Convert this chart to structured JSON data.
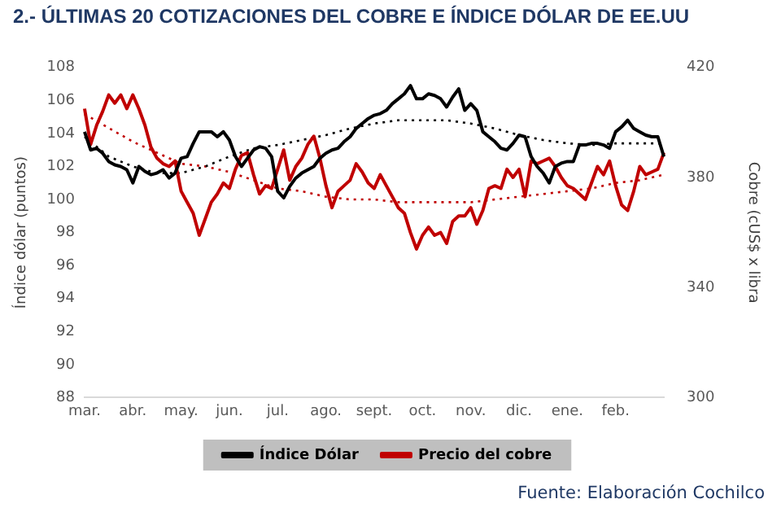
{
  "chart_data": {
    "type": "line",
    "title": "2.- ÚLTIMAS 20 COTIZACIONES DEL COBRE E ÍNDICE DÓLAR DE EE.UU",
    "ylabel": "Índice dólar (puntos)",
    "y2label": "Cobre (cUS$ x libra",
    "annotations": [
      "Fuente: Elaboración Cochilco"
    ],
    "categories": [
      "mar.",
      null,
      null,
      null,
      null,
      null,
      null,
      null,
      "abr.",
      null,
      null,
      null,
      null,
      null,
      null,
      null,
      "may.",
      null,
      null,
      null,
      null,
      null,
      null,
      null,
      "jun.",
      null,
      null,
      null,
      null,
      null,
      null,
      null,
      "jul.",
      null,
      null,
      null,
      null,
      null,
      null,
      null,
      "ago.",
      null,
      null,
      null,
      null,
      null,
      null,
      null,
      "sept.",
      null,
      null,
      null,
      null,
      null,
      null,
      null,
      "oct.",
      null,
      null,
      null,
      null,
      null,
      null,
      null,
      "nov.",
      null,
      null,
      null,
      null,
      null,
      null,
      null,
      "dic.",
      null,
      null,
      null,
      null,
      null,
      null,
      null,
      "ene.",
      null,
      null,
      null,
      null,
      null,
      null,
      null,
      "feb.",
      null,
      null,
      null,
      null,
      null,
      null,
      null,
      null
    ],
    "ylim": [
      88,
      108
    ],
    "yticks": [
      88,
      90,
      92,
      94,
      96,
      98,
      100,
      102,
      104,
      106,
      108
    ],
    "y2lim": [
      300,
      420
    ],
    "y2ticks": [
      300,
      340,
      380,
      420
    ],
    "grid": false,
    "legend": "bottom",
    "marker": "none",
    "series": [
      {
        "name": "Índice Dólar",
        "color": "#000000",
        "type": "line",
        "line_style": "solid",
        "values": [
          104.1,
          103,
          103.1,
          102.8,
          102.3,
          102.1,
          102,
          101.8,
          101,
          102,
          101.7,
          101.5,
          101.6,
          101.8,
          101.3,
          101.6,
          102.5,
          102.6,
          103.4,
          104.1,
          104.1,
          104.1,
          103.8,
          104.1,
          103.6,
          102.6,
          102,
          102.5,
          103,
          103.2,
          103.1,
          102.6,
          100.5,
          100.1,
          100.8,
          101.3,
          101.6,
          101.8,
          102,
          102.5,
          102.8,
          103,
          103.1,
          103.5,
          103.8,
          104.3,
          104.6,
          104.9,
          105.1,
          105.2,
          105.4,
          105.8,
          106.1,
          106.4,
          106.9,
          106.1,
          106.1,
          106.4,
          106.3,
          106.1,
          105.6,
          106.2,
          106.7,
          105.4,
          105.8,
          105.4,
          104.1,
          103.8,
          103.5,
          103.1,
          103,
          103.4,
          103.9,
          103.8,
          102.6,
          102,
          101.6,
          101,
          102,
          102.2,
          102.3,
          102.3,
          103.3,
          103.3,
          103.4,
          103.4,
          103.3,
          103.1,
          104.1,
          104.4,
          104.8,
          104.3,
          104.1,
          103.9,
          103.8,
          103.8,
          102.6
        ]
      },
      {
        "name": "Precio del cobre",
        "color": "#c00000",
        "type": "line",
        "line_style": "solid",
        "axis": "y2",
        "values": [
          405,
          392,
          399,
          404,
          410,
          407,
          410,
          405,
          410,
          405,
          399,
          391,
          387,
          385,
          384,
          386,
          375,
          371,
          367,
          359,
          365,
          371,
          374,
          378,
          376,
          383,
          388,
          389,
          381,
          374,
          377,
          376,
          383,
          390,
          379,
          384,
          387,
          392,
          395,
          387,
          377,
          369,
          375,
          377,
          379,
          385,
          382,
          378,
          376,
          381,
          377,
          373,
          369,
          367,
          360,
          354,
          359,
          362,
          359,
          360,
          356,
          364,
          366,
          366,
          369,
          363,
          368,
          376,
          377,
          376,
          383,
          380,
          383,
          373,
          386,
          385,
          386,
          387,
          384,
          380,
          377,
          376,
          374,
          372,
          378,
          384,
          381,
          386,
          377,
          370,
          368,
          375,
          384,
          381,
          382,
          383,
          389
        ]
      },
      {
        "color": "#000000",
        "type": "line",
        "line_style": "dotted",
        "values": [
          103.8,
          null,
          null,
          null,
          102.6,
          null,
          null,
          null,
          102,
          null,
          null,
          null,
          101.6,
          null,
          null,
          null,
          101.6,
          null,
          null,
          null,
          102,
          null,
          null,
          null,
          102.6,
          null,
          null,
          null,
          103.1,
          null,
          null,
          null,
          103.3,
          null,
          null,
          null,
          103.6,
          null,
          null,
          null,
          103.9,
          null,
          null,
          null,
          104.3,
          null,
          null,
          null,
          104.6,
          null,
          null,
          null,
          104.8,
          null,
          null,
          null,
          104.8,
          null,
          null,
          null,
          104.8,
          null,
          null,
          null,
          104.6,
          null,
          null,
          null,
          104.3,
          null,
          null,
          null,
          103.9,
          null,
          null,
          null,
          103.6,
          null,
          null,
          null,
          103.4,
          null,
          null,
          null,
          103.3,
          null,
          null,
          null,
          103.4,
          null,
          null,
          null,
          103.4,
          null,
          null,
          null,
          103.4
        ]
      },
      {
        "color": "#c00000",
        "type": "line",
        "line_style": "dotted",
        "axis": "y2",
        "values": [
          403,
          null,
          null,
          null,
          398,
          null,
          null,
          null,
          393,
          null,
          null,
          null,
          389,
          null,
          null,
          null,
          385,
          null,
          null,
          null,
          384,
          null,
          null,
          null,
          382,
          null,
          null,
          null,
          379,
          null,
          null,
          null,
          376,
          null,
          null,
          null,
          375,
          null,
          null,
          null,
          373,
          null,
          null,
          null,
          372,
          null,
          null,
          null,
          372,
          null,
          null,
          null,
          371,
          null,
          null,
          null,
          371,
          null,
          null,
          null,
          371,
          null,
          null,
          null,
          371,
          null,
          null,
          null,
          372,
          null,
          null,
          null,
          373,
          null,
          null,
          null,
          374,
          null,
          null,
          null,
          375,
          null,
          null,
          null,
          376,
          null,
          null,
          null,
          378,
          null,
          null,
          null,
          379,
          null,
          null,
          null,
          381
        ]
      }
    ]
  }
}
